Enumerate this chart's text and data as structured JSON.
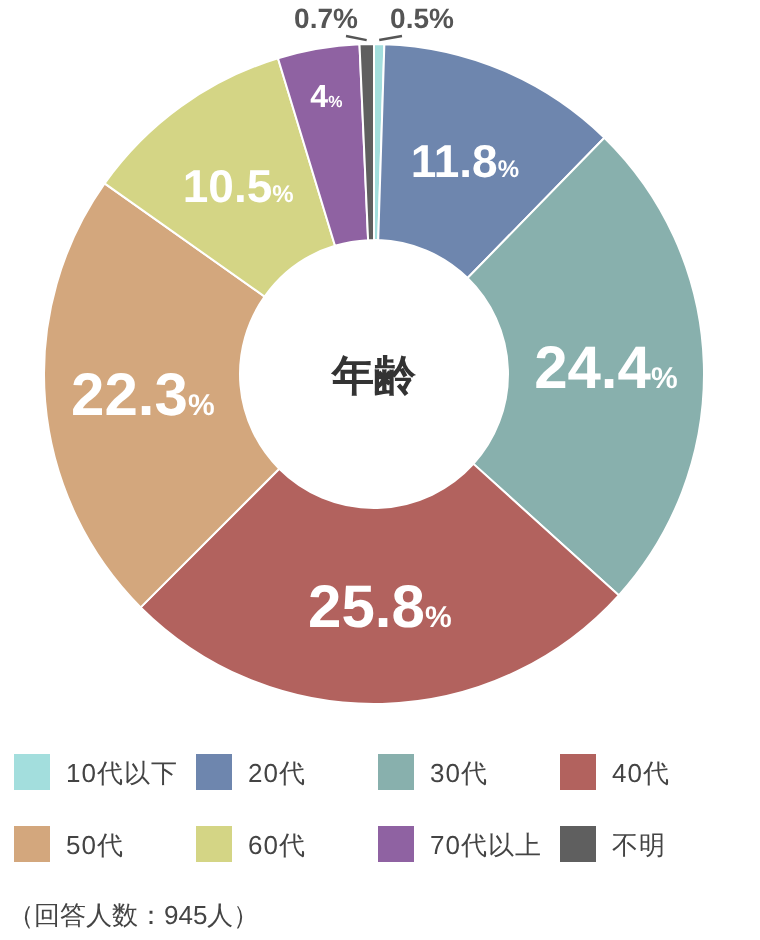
{
  "chart_data": {
    "type": "donut",
    "title": "年齢",
    "categories": [
      "10代以下",
      "20代",
      "30代",
      "40代",
      "50代",
      "60代",
      "70代以上",
      "不明"
    ],
    "values": [
      0.5,
      11.8,
      24.4,
      25.8,
      22.3,
      10.5,
      4,
      0.7
    ],
    "colors": [
      "#a3dedd",
      "#6e86ae",
      "#88b0ad",
      "#b2625e",
      "#d3a77d",
      "#d4d585",
      "#8f62a2",
      "#5f5f5f"
    ],
    "value_labels": [
      "0.5%",
      "11.8%",
      "24.4%",
      "25.8%",
      "22.3%",
      "10.5%",
      "4%",
      "0.7%"
    ],
    "legend": "bottom",
    "annotations": [
      "（回答人数：945人）"
    ]
  }
}
